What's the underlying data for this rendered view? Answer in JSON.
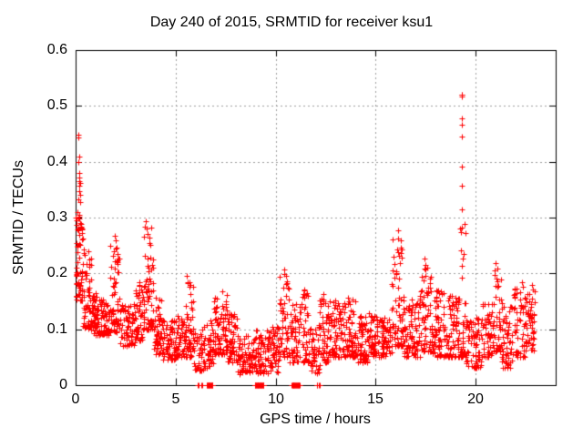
{
  "figure": {
    "background_color": "#ffffff",
    "axis_color": "#000000",
    "grid_color": "#a0a0a0",
    "marker_color": "#ff0000"
  },
  "chart_data": {
    "type": "scatter",
    "title": "Day 240 of 2015, SRMTID for receiver ksu1",
    "xlabel": "GPS time / hours",
    "ylabel": "SRMTID / TECUs",
    "xlim": [
      0,
      24
    ],
    "ylim": [
      0,
      0.6
    ],
    "xticks": [
      0,
      5,
      10,
      15,
      20
    ],
    "yticks": [
      0,
      0.1,
      0.2,
      0.3,
      0.4,
      0.5,
      0.6
    ],
    "xtick_labels": [
      "0",
      "5",
      "10",
      "15",
      "20"
    ],
    "ytick_labels": [
      "0",
      "0.1",
      "0.2",
      "0.3",
      "0.4",
      "0.5",
      "0.6"
    ],
    "grid": true,
    "grid_style": "dashed",
    "legend": "none",
    "marker": "plus",
    "marker_size": 7,
    "marker_color": "#ff0000",
    "series_name": "SRMTID",
    "density_segments_comment": "dense scatter encoded as [x_start,x_end,y_min,y_max,count,top_sparsity_bias]",
    "density_segments": [
      [
        0.02,
        0.35,
        0.15,
        0.3,
        55,
        1.2
      ],
      [
        0.35,
        0.8,
        0.1,
        0.245,
        60,
        1.5
      ],
      [
        0.8,
        1.2,
        0.09,
        0.165,
        55,
        1.4
      ],
      [
        1.2,
        1.7,
        0.09,
        0.155,
        55,
        1.4
      ],
      [
        1.7,
        2.2,
        0.095,
        0.25,
        65,
        2.0
      ],
      [
        2.2,
        3.0,
        0.07,
        0.145,
        75,
        1.4
      ],
      [
        3.0,
        3.4,
        0.08,
        0.185,
        45,
        1.6
      ],
      [
        3.4,
        3.9,
        0.1,
        0.285,
        65,
        2.0
      ],
      [
        3.9,
        4.3,
        0.055,
        0.16,
        50,
        1.6
      ],
      [
        4.3,
        5.0,
        0.045,
        0.12,
        70,
        1.4
      ],
      [
        5.0,
        5.45,
        0.05,
        0.13,
        45,
        1.4
      ],
      [
        5.45,
        5.9,
        0.05,
        0.19,
        55,
        1.8
      ],
      [
        5.9,
        6.4,
        0.025,
        0.1,
        40,
        1.3
      ],
      [
        6.4,
        6.9,
        0.03,
        0.12,
        45,
        1.4
      ],
      [
        6.9,
        7.6,
        0.055,
        0.165,
        80,
        1.5
      ],
      [
        7.6,
        8.1,
        0.04,
        0.13,
        55,
        1.5
      ],
      [
        8.1,
        8.9,
        0.02,
        0.09,
        70,
        1.3
      ],
      [
        8.9,
        9.4,
        0.02,
        0.1,
        50,
        1.3
      ],
      [
        9.4,
        10.2,
        0.02,
        0.105,
        75,
        1.3
      ],
      [
        10.2,
        10.7,
        0.05,
        0.2,
        55,
        1.9
      ],
      [
        10.7,
        11.2,
        0.04,
        0.15,
        50,
        1.6
      ],
      [
        11.2,
        11.7,
        0.04,
        0.17,
        50,
        1.7
      ],
      [
        11.7,
        12.2,
        0.02,
        0.11,
        45,
        1.3
      ],
      [
        12.2,
        12.7,
        0.04,
        0.16,
        55,
        1.6
      ],
      [
        12.7,
        13.3,
        0.05,
        0.15,
        60,
        1.5
      ],
      [
        13.3,
        14.0,
        0.05,
        0.155,
        70,
        1.5
      ],
      [
        14.0,
        14.6,
        0.04,
        0.125,
        60,
        1.4
      ],
      [
        14.6,
        15.2,
        0.05,
        0.135,
        60,
        1.4
      ],
      [
        15.2,
        15.8,
        0.05,
        0.125,
        60,
        1.4
      ],
      [
        15.8,
        16.4,
        0.07,
        0.27,
        65,
        2.3
      ],
      [
        16.4,
        17.2,
        0.05,
        0.16,
        85,
        1.5
      ],
      [
        17.2,
        17.8,
        0.06,
        0.215,
        60,
        1.8
      ],
      [
        17.8,
        18.6,
        0.05,
        0.17,
        80,
        1.5
      ],
      [
        18.6,
        19.2,
        0.05,
        0.16,
        70,
        1.5
      ],
      [
        19.2,
        19.5,
        0.05,
        0.3,
        35,
        2.2
      ],
      [
        19.5,
        20.3,
        0.03,
        0.12,
        70,
        1.4
      ],
      [
        20.3,
        20.9,
        0.05,
        0.15,
        55,
        1.5
      ],
      [
        20.9,
        21.3,
        0.06,
        0.21,
        45,
        1.8
      ],
      [
        21.3,
        21.9,
        0.03,
        0.15,
        55,
        1.5
      ],
      [
        21.9,
        22.5,
        0.05,
        0.175,
        55,
        1.6
      ],
      [
        22.5,
        22.95,
        0.06,
        0.17,
        50,
        1.4
      ]
    ],
    "outlier_points_comment": "notable individual [x,y] points read from the plot",
    "outlier_points": [
      [
        0.03,
        0.21
      ],
      [
        0.03,
        0.195
      ],
      [
        0.04,
        0.16
      ],
      [
        0.13,
        0.449
      ],
      [
        0.14,
        0.443
      ],
      [
        0.16,
        0.41
      ],
      [
        0.15,
        0.4
      ],
      [
        0.18,
        0.38
      ],
      [
        0.2,
        0.372
      ],
      [
        0.16,
        0.366
      ],
      [
        0.22,
        0.362
      ],
      [
        0.19,
        0.357
      ],
      [
        0.17,
        0.347
      ],
      [
        0.21,
        0.34
      ],
      [
        0.14,
        0.333
      ],
      [
        0.23,
        0.328
      ],
      [
        0.1,
        0.31
      ],
      [
        0.16,
        0.305
      ],
      [
        0.2,
        0.302
      ],
      [
        0.12,
        0.298
      ],
      [
        0.24,
        0.29
      ],
      [
        0.28,
        0.282
      ],
      [
        0.31,
        0.272
      ],
      [
        0.35,
        0.262
      ],
      [
        1.9,
        0.24
      ],
      [
        1.95,
        0.268
      ],
      [
        2.0,
        0.26
      ],
      [
        2.05,
        0.247
      ],
      [
        3.42,
        0.265
      ],
      [
        3.47,
        0.283
      ],
      [
        3.5,
        0.293
      ],
      [
        3.53,
        0.281
      ],
      [
        3.6,
        0.27
      ],
      [
        5.55,
        0.195
      ],
      [
        5.6,
        0.185
      ],
      [
        7.35,
        0.168
      ],
      [
        10.45,
        0.207
      ],
      [
        10.5,
        0.196
      ],
      [
        11.45,
        0.172
      ],
      [
        12.4,
        0.163
      ],
      [
        13.0,
        0.152
      ],
      [
        13.6,
        0.156
      ],
      [
        16.1,
        0.277
      ],
      [
        16.13,
        0.262
      ],
      [
        16.08,
        0.243
      ],
      [
        16.18,
        0.231
      ],
      [
        17.45,
        0.226
      ],
      [
        17.5,
        0.215
      ],
      [
        19.3,
        0.52
      ],
      [
        19.33,
        0.52
      ],
      [
        19.31,
        0.517
      ],
      [
        19.32,
        0.478
      ],
      [
        19.32,
        0.466
      ],
      [
        19.3,
        0.445
      ],
      [
        19.33,
        0.391
      ],
      [
        19.31,
        0.357
      ],
      [
        19.32,
        0.315
      ],
      [
        19.28,
        0.274
      ],
      [
        19.38,
        0.235
      ],
      [
        20.95,
        0.205
      ],
      [
        21.0,
        0.218
      ],
      [
        22.3,
        0.185
      ],
      [
        22.35,
        0.176
      ],
      [
        22.8,
        0.18
      ],
      [
        22.85,
        0.172
      ]
    ],
    "zero_value_runs_comment": "runs of points at exactly y=0 on the axis [x_start,x_end,count]; dense runs look like solid red squares",
    "zero_value_runs": [
      [
        6.1,
        6.13,
        2
      ],
      [
        6.28,
        6.31,
        2
      ],
      [
        6.55,
        6.85,
        16
      ],
      [
        8.95,
        9.4,
        24
      ],
      [
        10.8,
        11.2,
        20
      ],
      [
        12.05,
        12.07,
        2
      ],
      [
        12.17,
        12.19,
        2
      ]
    ]
  }
}
